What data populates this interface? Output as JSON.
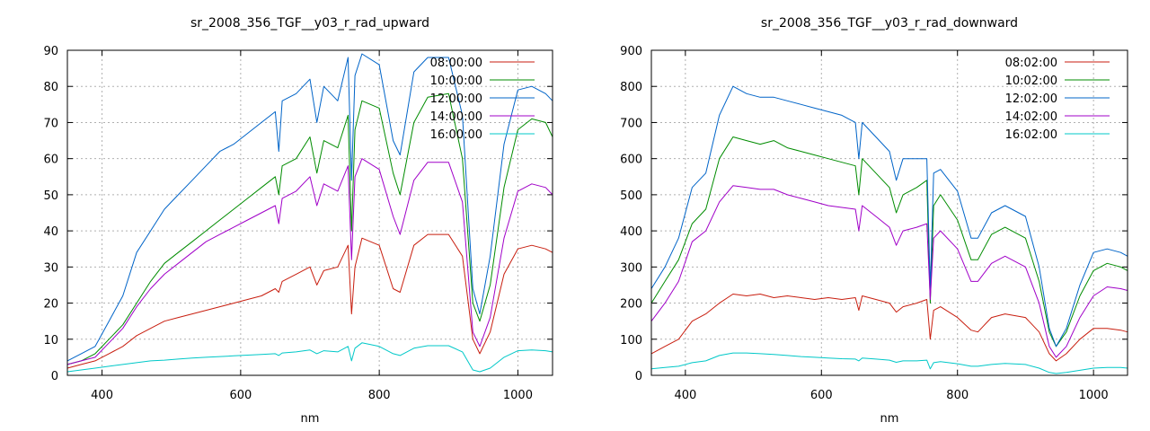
{
  "chart_data": [
    {
      "type": "line",
      "title": "sr_2008_356_TGF__y03_r_rad_upward",
      "xlabel": "nm",
      "ylabel": "",
      "xlim": [
        350,
        1050
      ],
      "ylim": [
        0,
        90
      ],
      "x_ticks": [
        400,
        600,
        800,
        1000
      ],
      "y_ticks": [
        0,
        10,
        20,
        30,
        40,
        50,
        60,
        70,
        80,
        90
      ],
      "grid": true,
      "legend_position": "top-right",
      "series": [
        {
          "name": "08:00:00",
          "color": "#c81e0f",
          "x": [
            350,
            370,
            390,
            410,
            430,
            450,
            470,
            490,
            510,
            530,
            550,
            570,
            590,
            610,
            630,
            650,
            655,
            660,
            680,
            700,
            710,
            720,
            740,
            755,
            760,
            765,
            775,
            800,
            820,
            830,
            850,
            870,
            900,
            920,
            935,
            945,
            960,
            980,
            1000,
            1020,
            1040,
            1050
          ],
          "y": [
            2,
            3,
            4,
            6,
            8,
            11,
            13,
            15,
            16,
            17,
            18,
            19,
            20,
            21,
            22,
            24,
            23,
            26,
            28,
            30,
            25,
            29,
            30,
            36,
            17,
            30,
            38,
            36,
            24,
            23,
            36,
            39,
            39,
            33,
            10,
            6,
            12,
            28,
            35,
            36,
            35,
            34
          ]
        },
        {
          "name": "10:00:00",
          "color": "#008c00",
          "x": [
            350,
            370,
            390,
            410,
            430,
            450,
            470,
            490,
            510,
            530,
            550,
            570,
            590,
            610,
            630,
            650,
            655,
            660,
            680,
            700,
            710,
            720,
            740,
            755,
            760,
            765,
            775,
            800,
            820,
            830,
            850,
            870,
            900,
            920,
            935,
            945,
            960,
            980,
            1000,
            1020,
            1040,
            1050
          ],
          "y": [
            3,
            4,
            6,
            10,
            14,
            20,
            26,
            31,
            34,
            37,
            40,
            43,
            46,
            49,
            52,
            55,
            50,
            58,
            60,
            66,
            56,
            65,
            63,
            72,
            40,
            68,
            76,
            74,
            56,
            50,
            70,
            77,
            78,
            60,
            20,
            15,
            25,
            52,
            68,
            71,
            70,
            66
          ]
        },
        {
          "name": "12:00:00",
          "color": "#0064c8",
          "x": [
            350,
            370,
            390,
            410,
            430,
            450,
            470,
            490,
            510,
            530,
            550,
            570,
            590,
            610,
            630,
            650,
            655,
            660,
            680,
            700,
            710,
            720,
            740,
            755,
            760,
            765,
            775,
            800,
            820,
            830,
            850,
            870,
            900,
            920,
            935,
            945,
            960,
            980,
            1000,
            1020,
            1040,
            1050
          ],
          "y": [
            4,
            6,
            8,
            15,
            22,
            34,
            40,
            46,
            50,
            54,
            58,
            62,
            64,
            67,
            70,
            73,
            62,
            76,
            78,
            82,
            70,
            80,
            76,
            88,
            54,
            83,
            89,
            86,
            65,
            61,
            84,
            88,
            88,
            72,
            24,
            17,
            33,
            64,
            79,
            80,
            78,
            76
          ]
        },
        {
          "name": "14:00:00",
          "color": "#a000c8",
          "x": [
            350,
            370,
            390,
            410,
            430,
            450,
            470,
            490,
            510,
            530,
            550,
            570,
            590,
            610,
            630,
            650,
            655,
            660,
            680,
            700,
            710,
            720,
            740,
            755,
            760,
            765,
            775,
            800,
            820,
            830,
            850,
            870,
            900,
            920,
            935,
            945,
            960,
            980,
            1000,
            1020,
            1040,
            1050
          ],
          "y": [
            3,
            4,
            5,
            9,
            13,
            19,
            24,
            28,
            31,
            34,
            37,
            39,
            41,
            43,
            45,
            47,
            42,
            49,
            51,
            55,
            47,
            53,
            51,
            58,
            32,
            55,
            60,
            57,
            44,
            39,
            54,
            59,
            59,
            48,
            12,
            8,
            16,
            38,
            51,
            53,
            52,
            50
          ]
        },
        {
          "name": "16:00:00",
          "color": "#00c8c8",
          "x": [
            350,
            370,
            390,
            410,
            430,
            450,
            470,
            490,
            510,
            530,
            550,
            570,
            590,
            610,
            630,
            650,
            655,
            660,
            680,
            700,
            710,
            720,
            740,
            755,
            760,
            765,
            775,
            800,
            820,
            830,
            850,
            870,
            900,
            920,
            935,
            945,
            960,
            980,
            1000,
            1020,
            1040,
            1050
          ],
          "y": [
            1,
            1.5,
            2,
            2.5,
            3,
            3.5,
            4,
            4.2,
            4.5,
            4.8,
            5,
            5.2,
            5.4,
            5.6,
            5.8,
            6,
            5.5,
            6.2,
            6.5,
            7,
            6,
            6.8,
            6.5,
            8,
            4,
            7.5,
            9,
            8,
            6,
            5.5,
            7.5,
            8.2,
            8.2,
            6.5,
            1.5,
            1,
            2,
            5,
            6.8,
            7,
            6.8,
            6.5
          ]
        }
      ]
    },
    {
      "type": "line",
      "title": "sr_2008_356_TGF__y03_r_rad_downward",
      "xlabel": "nm",
      "ylabel": "",
      "xlim": [
        350,
        1050
      ],
      "ylim": [
        0,
        900
      ],
      "x_ticks": [
        400,
        600,
        800,
        1000
      ],
      "y_ticks": [
        0,
        100,
        200,
        300,
        400,
        500,
        600,
        700,
        800,
        900
      ],
      "grid": true,
      "legend_position": "top-right",
      "series": [
        {
          "name": "08:02:00",
          "color": "#c81e0f",
          "x": [
            350,
            370,
            390,
            410,
            430,
            450,
            470,
            490,
            510,
            530,
            550,
            570,
            590,
            610,
            630,
            650,
            655,
            660,
            680,
            700,
            710,
            720,
            740,
            755,
            760,
            765,
            775,
            800,
            820,
            830,
            850,
            870,
            900,
            920,
            935,
            945,
            960,
            980,
            1000,
            1020,
            1040,
            1050
          ],
          "y": [
            60,
            80,
            100,
            150,
            170,
            200,
            225,
            220,
            225,
            215,
            220,
            215,
            210,
            215,
            210,
            215,
            180,
            220,
            210,
            200,
            175,
            190,
            200,
            210,
            100,
            180,
            190,
            160,
            125,
            120,
            160,
            170,
            160,
            120,
            60,
            40,
            60,
            100,
            130,
            130,
            125,
            120
          ]
        },
        {
          "name": "10:02:00",
          "color": "#008c00",
          "x": [
            350,
            370,
            390,
            410,
            430,
            450,
            470,
            490,
            510,
            530,
            550,
            570,
            590,
            610,
            630,
            650,
            655,
            660,
            680,
            700,
            710,
            720,
            740,
            755,
            760,
            765,
            775,
            800,
            820,
            830,
            850,
            870,
            900,
            920,
            935,
            945,
            960,
            980,
            1000,
            1020,
            1040,
            1050
          ],
          "y": [
            200,
            260,
            320,
            420,
            460,
            600,
            660,
            650,
            640,
            650,
            630,
            620,
            610,
            600,
            590,
            580,
            500,
            600,
            560,
            520,
            450,
            500,
            520,
            540,
            200,
            470,
            500,
            430,
            320,
            320,
            390,
            410,
            380,
            260,
            120,
            80,
            120,
            220,
            290,
            310,
            300,
            290
          ]
        },
        {
          "name": "12:02:00",
          "color": "#0064c8",
          "x": [
            350,
            370,
            390,
            410,
            430,
            450,
            470,
            490,
            510,
            530,
            550,
            570,
            590,
            610,
            630,
            650,
            655,
            660,
            680,
            700,
            710,
            720,
            740,
            755,
            760,
            765,
            775,
            800,
            820,
            830,
            850,
            870,
            900,
            920,
            935,
            945,
            960,
            980,
            1000,
            1020,
            1040,
            1050
          ],
          "y": [
            240,
            300,
            380,
            520,
            560,
            720,
            800,
            780,
            770,
            770,
            760,
            750,
            740,
            730,
            720,
            700,
            600,
            700,
            660,
            620,
            540,
            600,
            600,
            600,
            240,
            560,
            570,
            510,
            380,
            380,
            450,
            470,
            440,
            300,
            130,
            80,
            130,
            250,
            340,
            350,
            340,
            330
          ]
        },
        {
          "name": "14:02:00",
          "color": "#a000c8",
          "x": [
            350,
            370,
            390,
            410,
            430,
            450,
            470,
            490,
            510,
            530,
            550,
            570,
            590,
            610,
            630,
            650,
            655,
            660,
            680,
            700,
            710,
            720,
            740,
            755,
            760,
            765,
            775,
            800,
            820,
            830,
            850,
            870,
            900,
            920,
            935,
            945,
            960,
            980,
            1000,
            1020,
            1040,
            1050
          ],
          "y": [
            150,
            200,
            260,
            370,
            400,
            480,
            525,
            520,
            515,
            515,
            500,
            490,
            480,
            470,
            465,
            460,
            400,
            470,
            440,
            410,
            360,
            400,
            410,
            420,
            210,
            380,
            400,
            350,
            260,
            260,
            310,
            330,
            300,
            200,
            80,
            50,
            80,
            160,
            220,
            245,
            240,
            235
          ]
        },
        {
          "name": "16:02:00",
          "color": "#00c8c8",
          "x": [
            350,
            370,
            390,
            410,
            430,
            450,
            470,
            490,
            510,
            530,
            550,
            570,
            590,
            610,
            630,
            650,
            655,
            660,
            680,
            700,
            710,
            720,
            740,
            755,
            760,
            765,
            775,
            800,
            820,
            830,
            850,
            870,
            900,
            920,
            935,
            945,
            960,
            980,
            1000,
            1020,
            1040,
            1050
          ],
          "y": [
            18,
            22,
            25,
            35,
            40,
            55,
            62,
            62,
            60,
            58,
            55,
            52,
            50,
            48,
            46,
            45,
            40,
            48,
            45,
            42,
            36,
            40,
            40,
            42,
            18,
            35,
            38,
            32,
            25,
            25,
            30,
            33,
            30,
            20,
            8,
            5,
            8,
            14,
            20,
            22,
            22,
            20
          ]
        }
      ]
    }
  ]
}
